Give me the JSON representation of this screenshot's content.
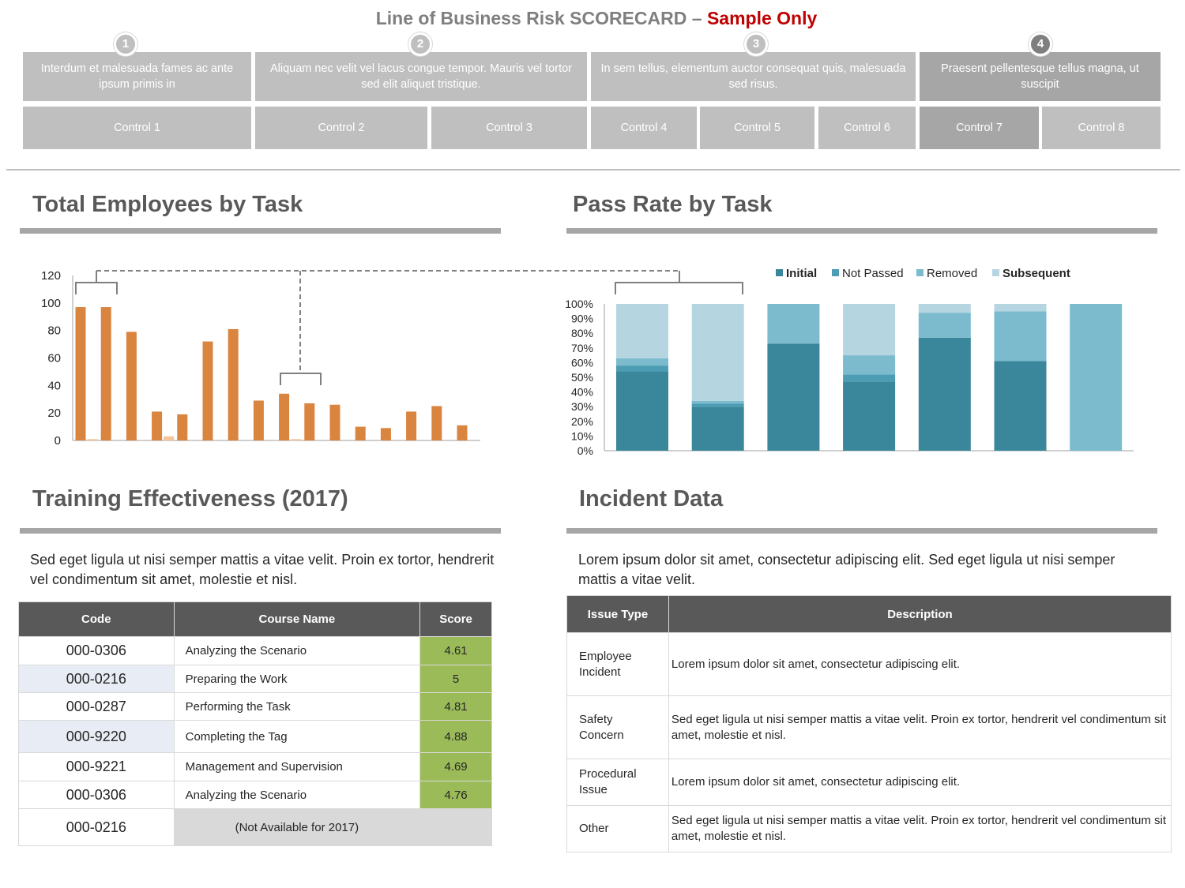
{
  "header": {
    "title_main": "Line of Business Risk SCORECARD – ",
    "title_highlight": "Sample Only",
    "steps": [
      {
        "number": "1",
        "description": "Interdum et malesuada fames ac ante ipsum primis in"
      },
      {
        "number": "2",
        "description": "Aliquam nec velit vel lacus congue tempor. Mauris vel tortor sed elit aliquet tristique."
      },
      {
        "number": "3",
        "description": "In sem tellus, elementum auctor consequat quis, malesuada sed risus."
      },
      {
        "number": "4",
        "description": "Praesent pellentesque tellus magna, ut suscipit"
      }
    ],
    "controls": [
      "Control 1",
      "Control 2",
      "Control 3",
      "Control 4",
      "Control 5",
      "Control 6",
      "Control 7",
      "Control 8"
    ]
  },
  "sections": {
    "employees_title": "Total Employees by Task",
    "pass_rate_title": "Pass Rate by Task",
    "training_title": "Training Effectiveness (2017)",
    "incident_title": "Incident Data"
  },
  "colors": {
    "bar_primary": "#d9843f",
    "bar_secondary": "#f4c59a",
    "initial": "#3a879b",
    "not_passed": "#4c9db3",
    "removed": "#7bbbcd",
    "subsequent": "#b5d6e1",
    "score_green": "#9bbb59"
  },
  "chart_data": [
    {
      "type": "bar",
      "title": "Total Employees by Task",
      "ylim": [
        0,
        120
      ],
      "yticks": [
        "120",
        "100",
        "80",
        "60",
        "40",
        "20",
        "0"
      ],
      "series": [
        {
          "name": "Primary",
          "values": [
            97,
            97,
            79,
            21,
            19,
            72,
            81,
            29,
            34,
            27,
            26,
            10,
            9,
            21,
            25,
            11
          ]
        },
        {
          "name": "Secondary",
          "values": [
            1,
            0,
            0,
            3,
            0,
            0,
            0,
            0,
            1,
            0,
            0,
            0,
            0,
            0,
            0,
            0
          ]
        }
      ]
    },
    {
      "type": "bar",
      "stacked": true,
      "title": "Pass Rate by Task",
      "ylim": [
        0,
        100
      ],
      "yticks": [
        "100%",
        "90%",
        "80%",
        "70%",
        "60%",
        "50%",
        "40%",
        "30%",
        "20%",
        "10%",
        "0%"
      ],
      "legend": [
        "Initial",
        "Not Passed",
        "Removed",
        "Subsequent"
      ],
      "series": [
        {
          "name": "Initial",
          "values": [
            54,
            30,
            73,
            47,
            77,
            61,
            0
          ]
        },
        {
          "name": "Not Passed",
          "values": [
            4,
            2,
            0,
            5,
            0,
            0,
            0
          ]
        },
        {
          "name": "Removed",
          "values": [
            5,
            2,
            27,
            13,
            17,
            34,
            100
          ]
        },
        {
          "name": "Subsequent",
          "values": [
            37,
            66,
            0,
            35,
            6,
            5,
            0
          ]
        }
      ]
    }
  ],
  "training": {
    "description": "Sed eget ligula ut nisi semper mattis a vitae velit. Proin ex tortor, hendrerit vel condimentum sit amet, molestie et nisl.",
    "headers": [
      "Code",
      "Course Name",
      "Score"
    ],
    "rows": [
      {
        "code": "000-0306",
        "course": "Analyzing the Scenario",
        "score": "4.61"
      },
      {
        "code": "000-0216",
        "course": "Preparing the Work",
        "score": "5"
      },
      {
        "code": "000-0287",
        "course": "Performing the Task",
        "score": "4.81"
      },
      {
        "code": "000-9220",
        "course": "Completing the Tag",
        "score": "4.88"
      },
      {
        "code": "000-9221",
        "course": "Management and Supervision",
        "score": "4.69"
      },
      {
        "code": "000-0306",
        "course": "Analyzing the Scenario",
        "score": "4.76"
      },
      {
        "code": "000-0216",
        "course": "(Not Available for 2017)",
        "score": ""
      }
    ]
  },
  "incident": {
    "description": "Lorem ipsum dolor sit amet, consectetur adipiscing elit. Sed eget ligula ut nisi semper mattis a vitae velit.",
    "headers": [
      "Issue Type",
      "Description"
    ],
    "rows": [
      {
        "type_line1": "Employee",
        "type_line2": "Incident",
        "description": "Lorem ipsum dolor sit amet, consectetur adipiscing elit."
      },
      {
        "type_line1": "Safety",
        "type_line2": "Concern",
        "description": "Sed eget ligula ut nisi semper mattis a vitae velit. Proin ex tortor, hendrerit vel condimentum sit amet, molestie et nisl."
      },
      {
        "type_line1": "Procedural",
        "type_line2": "Issue",
        "description": "Lorem ipsum dolor sit amet, consectetur adipiscing elit."
      },
      {
        "type_line1": "Other",
        "type_line2": "",
        "description": "Sed eget ligula ut nisi semper mattis a vitae velit. Proin ex tortor, hendrerit vel condimentum sit amet, molestie et nisl."
      }
    ]
  }
}
